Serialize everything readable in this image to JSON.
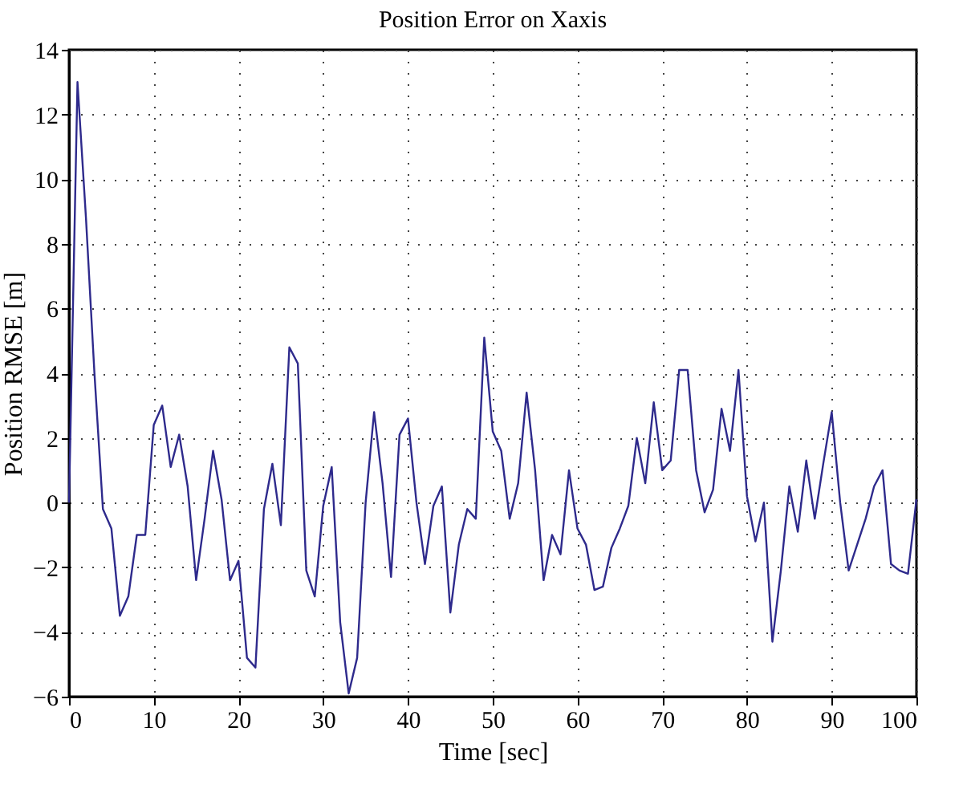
{
  "chart_data": {
    "type": "line",
    "title": "Position Error on Xaxis",
    "xlabel": "Time [sec]",
    "ylabel": "Position RMSE [m]",
    "x": [
      0,
      1,
      2,
      3,
      4,
      5,
      6,
      7,
      8,
      9,
      10,
      11,
      12,
      13,
      14,
      15,
      16,
      17,
      18,
      19,
      20,
      21,
      22,
      23,
      24,
      25,
      26,
      27,
      28,
      29,
      30,
      31,
      32,
      33,
      34,
      35,
      36,
      37,
      38,
      39,
      40,
      41,
      42,
      43,
      44,
      45,
      46,
      47,
      48,
      49,
      50,
      51,
      52,
      53,
      54,
      55,
      56,
      57,
      58,
      59,
      60,
      61,
      62,
      63,
      64,
      65,
      66,
      67,
      68,
      69,
      70,
      71,
      72,
      73,
      74,
      75,
      76,
      77,
      78,
      79,
      80,
      81,
      82,
      83,
      84,
      85,
      86,
      87,
      88,
      89,
      90,
      91,
      92,
      93,
      94,
      95,
      96,
      97,
      98,
      99,
      100
    ],
    "series": [
      {
        "color": "#2e2a8c",
        "values": [
          0,
          13.0,
          8.8,
          4.0,
          -0.2,
          -0.8,
          -3.5,
          -2.9,
          -1.0,
          -1.0,
          2.4,
          3.0,
          1.1,
          2.1,
          0.5,
          -2.4,
          -0.5,
          1.6,
          0.1,
          -2.4,
          -1.8,
          -4.8,
          -5.1,
          -0.2,
          1.2,
          -0.7,
          4.8,
          4.3,
          -2.1,
          -2.9,
          -0.1,
          1.1,
          -3.7,
          -5.9,
          -4.8,
          0.0,
          2.8,
          0.6,
          -2.3,
          2.1,
          2.6,
          0.0,
          -1.9,
          -0.1,
          0.5,
          -3.4,
          -1.3,
          -0.2,
          -0.5,
          5.1,
          2.2,
          1.6,
          -0.5,
          0.6,
          3.4,
          1.0,
          -2.4,
          -1.0,
          -1.6,
          1.0,
          -0.8,
          -1.3,
          -2.7,
          -2.6,
          -1.4,
          -0.8,
          -0.1,
          2.0,
          0.6,
          3.1,
          1.0,
          1.3,
          4.1,
          4.1,
          1.0,
          -0.3,
          0.4,
          2.9,
          1.6,
          4.1,
          0.2,
          -1.2,
          0.0,
          -4.3,
          -2.1,
          0.5,
          -0.9,
          1.3,
          -0.5,
          1.2,
          2.8,
          0.0,
          -2.1,
          -1.3,
          -0.5,
          0.5,
          1.0,
          -1.9,
          -2.1,
          -2.2,
          0.1
        ]
      }
    ],
    "xlim": [
      0,
      100
    ],
    "xticks": [
      0,
      10,
      20,
      30,
      40,
      50,
      60,
      70,
      80,
      90,
      100
    ],
    "ylim": [
      -6,
      14
    ],
    "yticks": [
      -6,
      -4,
      -2,
      0,
      2,
      4,
      6,
      8,
      10,
      12,
      14
    ],
    "grid": true,
    "marker": "none",
    "line_style": "solid"
  }
}
